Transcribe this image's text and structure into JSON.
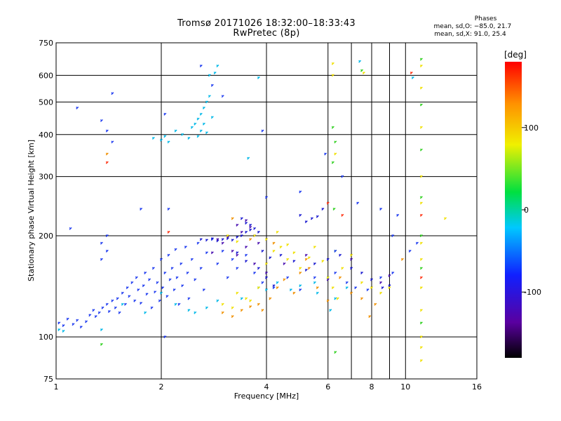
{
  "title_line1": "Tromsø 20171026 18:32:00–18:33:43",
  "title_line2": "RwPretec (8p)",
  "phases": {
    "title": "Phases",
    "o_label": "mean, sd,O:",
    "o_value": "−85.0, 21.7",
    "x_label": "mean, sd,X:",
    "x_value": "91.0, 25.4"
  },
  "chart_data": {
    "type": "scatter",
    "xlabel": "Frequency [MHz]",
    "ylabel": "Stationary phase Virtual Height [km]",
    "x_scale": "log",
    "y_scale": "log",
    "xlim": [
      1,
      16
    ],
    "ylim": [
      75,
      750
    ],
    "x_ticks": [
      1,
      2,
      4,
      6,
      8,
      10,
      16
    ],
    "x_minor_ticks": [
      7,
      9
    ],
    "y_ticks": [
      75,
      100,
      200,
      300,
      400,
      500,
      600,
      750
    ],
    "grid": true,
    "colorbar": {
      "label": "[deg]",
      "range": [
        -180,
        180
      ],
      "ticks": [
        -100,
        0,
        100
      ]
    },
    "colors": {
      "blue": "#1f3cf0",
      "deep_blue": "#1a1ad0",
      "purple": "#4a10b0",
      "cyan": "#00b8e8",
      "yellow": "#f0e000",
      "orange": "#f09000",
      "green": "#30d020",
      "red": "#ff3010"
    },
    "series": [
      {
        "color": "blue",
        "points": [
          [
            1.02,
            110
          ],
          [
            1.05,
            108
          ],
          [
            1.08,
            113
          ],
          [
            1.12,
            109
          ],
          [
            1.15,
            112
          ],
          [
            1.18,
            107
          ],
          [
            1.22,
            111
          ],
          [
            1.25,
            116
          ],
          [
            1.28,
            120
          ],
          [
            1.3,
            115
          ],
          [
            1.33,
            118
          ],
          [
            1.36,
            122
          ],
          [
            1.4,
            125
          ],
          [
            1.42,
            119
          ],
          [
            1.45,
            128
          ],
          [
            1.48,
            122
          ],
          [
            1.5,
            130
          ],
          [
            1.52,
            118
          ],
          [
            1.55,
            135
          ],
          [
            1.58,
            125
          ],
          [
            1.6,
            140
          ],
          [
            1.62,
            132
          ],
          [
            1.65,
            145
          ],
          [
            1.68,
            128
          ],
          [
            1.7,
            150
          ],
          [
            1.72,
            138
          ],
          [
            1.75,
            126
          ],
          [
            1.78,
            142
          ],
          [
            1.8,
            155
          ],
          [
            1.82,
            134
          ],
          [
            1.85,
            148
          ],
          [
            1.88,
            122
          ],
          [
            1.9,
            160
          ],
          [
            1.92,
            136
          ],
          [
            1.95,
            145
          ],
          [
            1.98,
            128
          ],
          [
            2.0,
            170
          ],
          [
            2.02,
            140
          ],
          [
            2.05,
            155
          ],
          [
            2.08,
            132
          ],
          [
            2.1,
            175
          ],
          [
            2.12,
            148
          ],
          [
            2.15,
            160
          ],
          [
            2.18,
            138
          ],
          [
            2.2,
            182
          ],
          [
            2.22,
            150
          ],
          [
            2.25,
            125
          ],
          [
            2.28,
            165
          ],
          [
            2.3,
            142
          ],
          [
            2.35,
            185
          ],
          [
            2.38,
            155
          ],
          [
            2.4,
            130
          ],
          [
            2.45,
            170
          ],
          [
            2.5,
            148
          ],
          [
            2.55,
            190
          ],
          [
            2.6,
            160
          ],
          [
            2.65,
            138
          ],
          [
            2.7,
            178
          ],
          [
            2.8,
            195
          ],
          [
            2.9,
            165
          ],
          [
            3.0,
            180
          ],
          [
            3.1,
            150
          ],
          [
            3.2,
            170
          ],
          [
            3.3,
            160
          ],
          [
            3.5,
            175
          ],
          [
            3.7,
            155
          ],
          [
            3.9,
            145
          ],
          [
            4.2,
            140
          ],
          [
            4.6,
            150
          ],
          [
            5.0,
            138
          ],
          [
            5.5,
            150
          ],
          [
            6.3,
            155
          ],
          [
            6.8,
            145
          ],
          [
            7.2,
            140
          ],
          [
            7.8,
            138
          ],
          [
            8.5,
            150
          ],
          [
            9.2,
            155
          ]
        ]
      },
      {
        "color": "deep_blue",
        "points": [
          [
            2.6,
            195
          ],
          [
            2.7,
            194
          ],
          [
            2.8,
            196
          ],
          [
            2.9,
            193
          ],
          [
            3.0,
            195
          ],
          [
            3.1,
            196
          ],
          [
            3.2,
            194
          ],
          [
            3.3,
            198
          ],
          [
            3.4,
            200
          ],
          [
            3.5,
            205
          ],
          [
            3.6,
            215
          ],
          [
            3.7,
            210
          ],
          [
            3.8,
            205
          ],
          [
            3.4,
            225
          ],
          [
            3.5,
            218
          ],
          [
            3.6,
            208
          ],
          [
            3.7,
            200
          ],
          [
            3.3,
            178
          ],
          [
            3.5,
            168
          ],
          [
            3.8,
            160
          ],
          [
            4.0,
            150
          ],
          [
            4.2,
            142
          ],
          [
            3.9,
            180
          ],
          [
            4.1,
            172
          ],
          [
            4.4,
            175
          ],
          [
            4.8,
            168
          ],
          [
            5.2,
            158
          ],
          [
            5.5,
            165
          ],
          [
            6.0,
            170
          ],
          [
            6.5,
            175
          ],
          [
            7.0,
            160
          ],
          [
            7.5,
            155
          ],
          [
            8.0,
            148
          ],
          [
            8.6,
            140
          ],
          [
            9.0,
            142
          ],
          [
            5.0,
            230
          ],
          [
            5.4,
            225
          ],
          [
            5.8,
            240
          ],
          [
            5.2,
            220
          ],
          [
            5.6,
            228
          ]
        ]
      },
      {
        "color": "purple",
        "points": [
          [
            2.9,
            195
          ],
          [
            3.1,
            198
          ],
          [
            3.3,
            215
          ],
          [
            3.4,
            205
          ],
          [
            3.5,
            222
          ],
          [
            3.6,
            212
          ],
          [
            3.3,
            175
          ],
          [
            3.5,
            185
          ],
          [
            3.7,
            165
          ],
          [
            3.0,
            190
          ],
          [
            3.2,
            180
          ],
          [
            2.8,
            178
          ],
          [
            3.8,
            190
          ],
          [
            4.0,
            155
          ],
          [
            4.5,
            165
          ],
          [
            5.2,
            175
          ],
          [
            6.0,
            148
          ],
          [
            7.0,
            170
          ],
          [
            8.5,
            145
          ],
          [
            9.0,
            152
          ]
        ]
      },
      {
        "color": "cyan",
        "points": [
          [
            1.02,
            105
          ],
          [
            1.05,
            104
          ],
          [
            1.35,
            105
          ],
          [
            1.55,
            125
          ],
          [
            1.8,
            118
          ],
          [
            2.0,
            135
          ],
          [
            2.2,
            125
          ],
          [
            2.4,
            120
          ],
          [
            2.5,
            118
          ],
          [
            2.7,
            122
          ],
          [
            2.9,
            128
          ],
          [
            3.4,
            130
          ],
          [
            3.8,
            140
          ],
          [
            4.0,
            138
          ],
          [
            4.3,
            145
          ],
          [
            4.7,
            138
          ],
          [
            5.0,
            142
          ],
          [
            5.6,
            135
          ],
          [
            6.3,
            130
          ],
          [
            6.8,
            140
          ],
          [
            1.9,
            390
          ],
          [
            2.0,
            385
          ],
          [
            2.1,
            380
          ],
          [
            2.05,
            395
          ],
          [
            2.2,
            410
          ],
          [
            2.3,
            400
          ],
          [
            2.4,
            390
          ],
          [
            2.45,
            420
          ],
          [
            2.5,
            430
          ],
          [
            2.55,
            445
          ],
          [
            2.6,
            460
          ],
          [
            2.65,
            480
          ],
          [
            2.7,
            500
          ],
          [
            2.75,
            520
          ],
          [
            2.6,
            410
          ],
          [
            2.7,
            405
          ],
          [
            2.55,
            395
          ],
          [
            2.65,
            430
          ],
          [
            2.8,
            450
          ],
          [
            2.75,
            600
          ],
          [
            2.85,
            610
          ],
          [
            2.9,
            640
          ],
          [
            3.8,
            590
          ],
          [
            3.55,
            340
          ],
          [
            6.1,
            120
          ],
          [
            5.5,
            145
          ],
          [
            6.0,
            150
          ],
          [
            7.4,
            660
          ],
          [
            10.5,
            590
          ]
        ]
      },
      {
        "color": "yellow",
        "points": [
          [
            3.0,
            125
          ],
          [
            3.2,
            122
          ],
          [
            3.3,
            135
          ],
          [
            3.5,
            130
          ],
          [
            3.6,
            128
          ],
          [
            3.8,
            140
          ],
          [
            4.0,
            165
          ],
          [
            4.2,
            180
          ],
          [
            4.4,
            185
          ],
          [
            4.6,
            170
          ],
          [
            4.8,
            178
          ],
          [
            5.0,
            160
          ],
          [
            5.3,
            172
          ],
          [
            5.5,
            185
          ],
          [
            5.8,
            168
          ],
          [
            6.0,
            150
          ],
          [
            6.2,
            140
          ],
          [
            6.4,
            130
          ],
          [
            6.6,
            160
          ],
          [
            7.0,
            175
          ],
          [
            7.5,
            145
          ],
          [
            8.0,
            140
          ],
          [
            8.5,
            135
          ],
          [
            9.0,
            140
          ],
          [
            3.1,
            200
          ],
          [
            3.3,
            192
          ],
          [
            3.7,
            200
          ],
          [
            4.0,
            195
          ],
          [
            4.3,
            205
          ],
          [
            4.6,
            188
          ],
          [
            6.2,
            650
          ],
          [
            6.2,
            600
          ],
          [
            6.3,
            350
          ],
          [
            11.1,
            640
          ],
          [
            11.1,
            550
          ],
          [
            11.1,
            420
          ],
          [
            11.1,
            300
          ],
          [
            11.1,
            250
          ],
          [
            11.1,
            190
          ],
          [
            11.1,
            170
          ],
          [
            11.1,
            140
          ],
          [
            11.1,
            120
          ],
          [
            11.1,
            100
          ],
          [
            11.1,
            93
          ],
          [
            11.1,
            85
          ],
          [
            13.0,
            225
          ],
          [
            7.6,
            610
          ]
        ]
      },
      {
        "color": "orange",
        "points": [
          [
            3.0,
            118
          ],
          [
            3.2,
            115
          ],
          [
            3.4,
            120
          ],
          [
            3.6,
            123
          ],
          [
            3.8,
            125
          ],
          [
            3.9,
            120
          ],
          [
            4.1,
            130
          ],
          [
            4.3,
            140
          ],
          [
            4.5,
            148
          ],
          [
            4.8,
            135
          ],
          [
            5.0,
            155
          ],
          [
            5.3,
            160
          ],
          [
            5.6,
            140
          ],
          [
            6.0,
            128
          ],
          [
            6.5,
            150
          ],
          [
            7.0,
            135
          ],
          [
            7.5,
            130
          ],
          [
            8.2,
            125
          ],
          [
            3.2,
            225
          ],
          [
            3.6,
            195
          ],
          [
            4.2,
            190
          ],
          [
            5.2,
            170
          ],
          [
            1.4,
            350
          ],
          [
            7.9,
            115
          ],
          [
            9.8,
            170
          ]
        ]
      },
      {
        "color": "green",
        "points": [
          [
            6.2,
            420
          ],
          [
            6.2,
            330
          ],
          [
            6.3,
            380
          ],
          [
            6.25,
            240
          ],
          [
            6.3,
            180
          ],
          [
            6.3,
            90
          ],
          [
            11.1,
            670
          ],
          [
            11.1,
            490
          ],
          [
            11.1,
            360
          ],
          [
            11.1,
            260
          ],
          [
            11.1,
            200
          ],
          [
            11.1,
            160
          ],
          [
            11.1,
            110
          ],
          [
            1.35,
            95
          ],
          [
            7.5,
            620
          ]
        ]
      },
      {
        "color": "red",
        "points": [
          [
            1.4,
            330
          ],
          [
            6.0,
            250
          ],
          [
            6.6,
            230
          ],
          [
            11.1,
            230
          ],
          [
            11.1,
            150
          ],
          [
            2.1,
            205
          ],
          [
            10.4,
            610
          ]
        ]
      }
    ],
    "scatter_noise": {
      "blue": [
        [
          1.1,
          210
        ],
        [
          1.35,
          190
        ],
        [
          1.4,
          200
        ],
        [
          1.45,
          530
        ],
        [
          1.35,
          440
        ],
        [
          1.4,
          410
        ],
        [
          1.45,
          380
        ],
        [
          1.15,
          480
        ],
        [
          2.05,
          460
        ],
        [
          2.6,
          640
        ],
        [
          2.8,
          560
        ],
        [
          3.0,
          520
        ],
        [
          3.9,
          410
        ],
        [
          1.75,
          240
        ],
        [
          2.1,
          240
        ],
        [
          4.0,
          260
        ],
        [
          5.0,
          270
        ],
        [
          5.9,
          350
        ],
        [
          6.6,
          300
        ],
        [
          7.3,
          250
        ],
        [
          8.5,
          240
        ],
        [
          9.5,
          230
        ],
        [
          10.8,
          190
        ],
        [
          10.3,
          180
        ],
        [
          9.2,
          200
        ],
        [
          1.4,
          180
        ],
        [
          1.35,
          170
        ],
        [
          2.05,
          100
        ],
        [
          6.3,
          180
        ]
      ]
    }
  }
}
